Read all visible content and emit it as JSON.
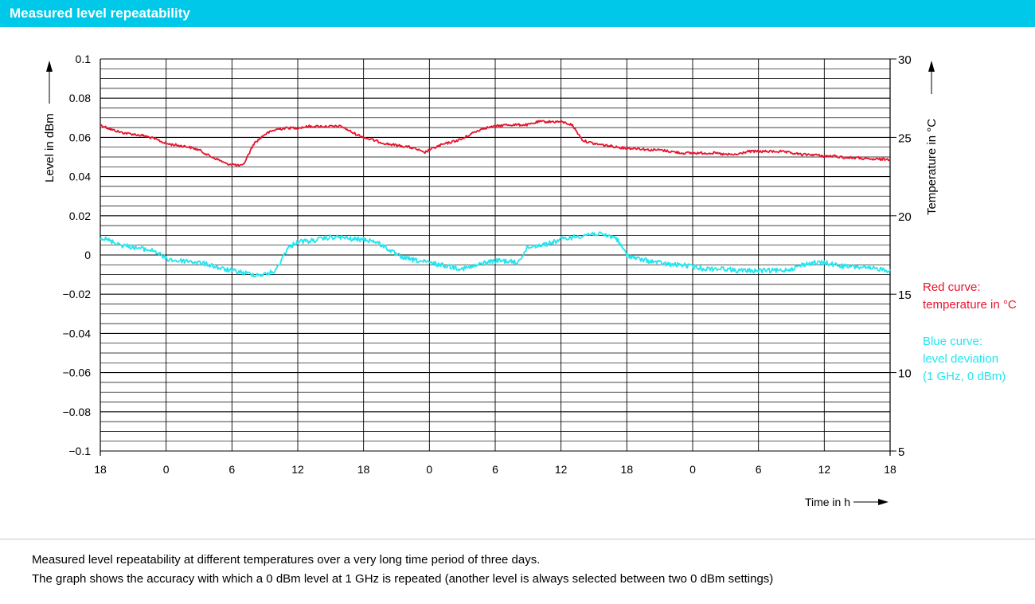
{
  "header": {
    "title": "Measured level repeatability"
  },
  "caption": {
    "line1": "Measured level repeatability at different temperatures over a very long time period of three days.",
    "line2": "The graph shows the accuracy with which a 0 dBm level at 1 GHz is repeated (another level is always selected between two 0 dBm settings)"
  },
  "legend": {
    "red_line1": "Red curve:",
    "red_line2": "temperature in °C",
    "blue_line1": "Blue curve:",
    "blue_line2": "level deviation",
    "blue_line3": "(1 GHz, 0 dBm)"
  },
  "colors": {
    "accent": "#00c8e8",
    "temperature": "#e8142d",
    "level": "#22e6f0",
    "title_text": "#ffffff"
  },
  "chart_data": {
    "type": "line",
    "title": "Measured level repeatability",
    "xlabel": "Time in h",
    "ylabel": "Level in dBm",
    "y2label": "Temperature in °C",
    "xlim": [
      0,
      72
    ],
    "ylim": [
      -0.1,
      0.1
    ],
    "y2lim": [
      5,
      30
    ],
    "x_ticks": [
      0,
      6,
      12,
      18,
      24,
      30,
      36,
      42,
      48,
      54,
      60,
      66,
      72
    ],
    "x_tick_labels": [
      "18",
      "0",
      "6",
      "12",
      "18",
      "0",
      "6",
      "12",
      "18",
      "0",
      "6",
      "12",
      "18"
    ],
    "y_ticks": [
      0.1,
      0.08,
      0.06,
      0.04,
      0.02,
      0,
      -0.02,
      -0.04,
      -0.06,
      -0.08,
      -0.1
    ],
    "y_tick_labels": [
      "0.1",
      "0.08",
      "0.06",
      "0.04",
      "0.02",
      "0",
      "−0.02",
      "−0.04",
      "−0.06",
      "−0.08",
      "−0.1"
    ],
    "y2_ticks": [
      30,
      25,
      20,
      15,
      10,
      5
    ],
    "y2_tick_labels": [
      "30",
      "25",
      "20",
      "15",
      "10",
      "5"
    ],
    "grid": true,
    "series": [
      {
        "axis": "right",
        "x": [
          0,
          1,
          2,
          3,
          4,
          5,
          6,
          7,
          8,
          9,
          10,
          11,
          11.5,
          12,
          12.5,
          13,
          14,
          15,
          16,
          17,
          18,
          19,
          20,
          21,
          22,
          23,
          24,
          25,
          26,
          27,
          28,
          28.6,
          29,
          29.5,
          30,
          31,
          32,
          33,
          34,
          35,
          36,
          37,
          38,
          39,
          40,
          41,
          42,
          43,
          44,
          45,
          46,
          47,
          48,
          49,
          50,
          51,
          52,
          53,
          54,
          55,
          56,
          57,
          58,
          59,
          60,
          61,
          62,
          63,
          64,
          65,
          66,
          67,
          68,
          69,
          70,
          71,
          72
        ],
        "values": [
          25.8,
          25.5,
          25.3,
          25.2,
          25.1,
          24.9,
          24.6,
          24.5,
          24.4,
          24.2,
          23.8,
          23.5,
          23.3,
          23.3,
          23.2,
          23.2,
          24.6,
          25.2,
          25.5,
          25.6,
          25.6,
          25.7,
          25.7,
          25.7,
          25.7,
          25.3,
          25.0,
          24.8,
          24.6,
          24.5,
          24.4,
          24.3,
          24.2,
          24.0,
          24.2,
          24.5,
          24.7,
          24.9,
          25.3,
          25.6,
          25.7,
          25.8,
          25.8,
          25.8,
          26.0,
          26.0,
          26.0,
          25.8,
          24.8,
          24.6,
          24.5,
          24.4,
          24.3,
          24.3,
          24.2,
          24.2,
          24.1,
          24.0,
          24.0,
          24.0,
          24.0,
          23.9,
          23.9,
          24.1,
          24.1,
          24.1,
          24.1,
          24.0,
          23.9,
          23.9,
          23.8,
          23.8,
          23.7,
          23.7,
          23.6,
          23.6,
          23.6
        ]
      },
      {
        "axis": "left",
        "x": [
          0,
          1,
          2,
          3,
          4,
          5,
          6,
          7,
          8,
          9,
          10,
          11,
          12,
          13,
          14,
          15,
          16,
          17,
          18,
          19,
          20,
          21,
          22,
          23,
          24,
          25,
          26,
          27,
          28,
          29,
          30,
          31,
          32,
          33,
          34,
          35,
          36,
          37,
          38,
          39,
          40,
          41,
          42,
          43,
          44,
          45,
          46,
          47,
          48,
          49,
          50,
          51,
          52,
          53,
          54,
          55,
          56,
          57,
          58,
          59,
          60,
          61,
          62,
          63,
          64,
          65,
          66,
          67,
          68,
          69,
          70,
          71,
          72
        ],
        "values": [
          0.009,
          0.007,
          0.005,
          0.004,
          0.003,
          0.002,
          -0.002,
          -0.003,
          -0.003,
          -0.004,
          -0.005,
          -0.007,
          -0.008,
          -0.009,
          -0.01,
          -0.01,
          -0.008,
          0.003,
          0.007,
          0.007,
          0.008,
          0.009,
          0.009,
          0.008,
          0.008,
          0.007,
          0.004,
          0.0,
          -0.002,
          -0.003,
          -0.004,
          -0.005,
          -0.006,
          -0.007,
          -0.006,
          -0.004,
          -0.003,
          -0.003,
          -0.004,
          0.004,
          0.005,
          0.006,
          0.008,
          0.009,
          0.01,
          0.011,
          0.01,
          0.009,
          0.0,
          -0.002,
          -0.003,
          -0.004,
          -0.005,
          -0.005,
          -0.006,
          -0.007,
          -0.007,
          -0.007,
          -0.008,
          -0.008,
          -0.008,
          -0.008,
          -0.008,
          -0.007,
          -0.005,
          -0.004,
          -0.004,
          -0.005,
          -0.006,
          -0.006,
          -0.007,
          -0.007,
          -0.008
        ]
      }
    ]
  }
}
